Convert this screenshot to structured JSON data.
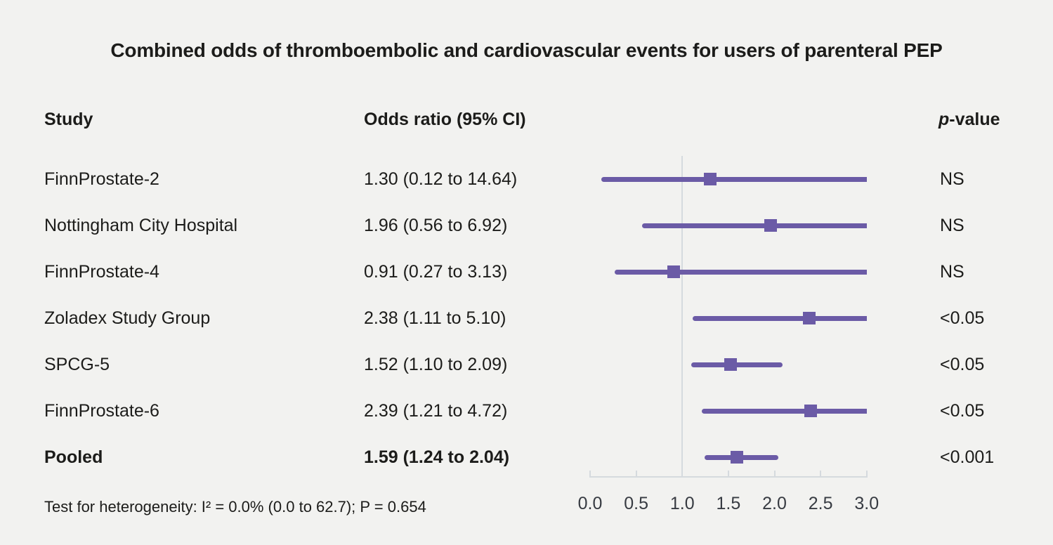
{
  "title": "Combined odds of thromboembolic and cardiovascular events for users of parenteral PEP",
  "columns": {
    "study": "Study",
    "odds_ratio": "Odds ratio (95% CI)",
    "p_prefix": "p",
    "p_suffix": "-value"
  },
  "footer": "Test for heterogeneity: I² = 0.0% (0.0 to 62.7); P = 0.654",
  "colors": {
    "accent": "#6b5ba6",
    "axis": "#d5dade",
    "background": "#f2f2f0",
    "text": "#1c1c1a"
  },
  "chart_data": {
    "type": "forest",
    "title": "Combined odds of thromboembolic and cardiovascular events for users of parenteral PEP",
    "xlabel": "",
    "xlim": [
      0,
      3
    ],
    "x_ticks": [
      "0.0",
      "0.5",
      "1.0",
      "1.5",
      "2.0",
      "2.5",
      "3.0"
    ],
    "reference_line": 1.0,
    "legend": "none",
    "grid": "off",
    "rows": [
      {
        "study": "FinnProstate-2",
        "or": 1.3,
        "ci_low": 0.12,
        "ci_high": 14.64,
        "or_label": "1.30 (0.12 to 14.64)",
        "p_value": "NS",
        "bold": false
      },
      {
        "study": "Nottingham City Hospital",
        "or": 1.96,
        "ci_low": 0.56,
        "ci_high": 6.92,
        "or_label": "1.96 (0.56 to 6.92)",
        "p_value": "NS",
        "bold": false
      },
      {
        "study": "FinnProstate-4",
        "or": 0.91,
        "ci_low": 0.27,
        "ci_high": 3.13,
        "or_label": "0.91 (0.27 to 3.13)",
        "p_value": "NS",
        "bold": false
      },
      {
        "study": "Zoladex Study Group",
        "or": 2.38,
        "ci_low": 1.11,
        "ci_high": 5.1,
        "or_label": "2.38 (1.11 to 5.10)",
        "p_value": "<0.05",
        "bold": false
      },
      {
        "study": "SPCG-5",
        "or": 1.52,
        "ci_low": 1.1,
        "ci_high": 2.09,
        "or_label": "1.52 (1.10 to 2.09)",
        "p_value": "<0.05",
        "bold": false
      },
      {
        "study": "FinnProstate-6",
        "or": 2.39,
        "ci_low": 1.21,
        "ci_high": 4.72,
        "or_label": "2.39 (1.21 to 4.72)",
        "p_value": "<0.05",
        "bold": false
      },
      {
        "study": "Pooled",
        "or": 1.59,
        "ci_low": 1.24,
        "ci_high": 2.04,
        "or_label": "1.59 (1.24 to 2.04)",
        "p_value": "<0.001",
        "bold": true
      }
    ]
  }
}
